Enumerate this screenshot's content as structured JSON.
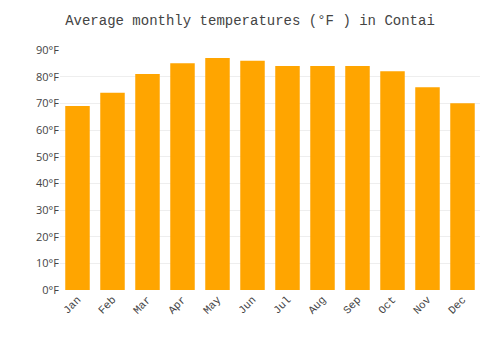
{
  "chart_data": {
    "type": "bar",
    "title": "Average monthly temperatures (°F ) in Contai",
    "categories": [
      "Jan",
      "Feb",
      "Mar",
      "Apr",
      "May",
      "Jun",
      "Jul",
      "Aug",
      "Sep",
      "Oct",
      "Nov",
      "Dec"
    ],
    "values": [
      69,
      74,
      81,
      85,
      87,
      86,
      84,
      84,
      84,
      82,
      76,
      70
    ],
    "color": "#FFA500",
    "ylim": [
      0,
      90
    ],
    "yticks": [
      {
        "value": 0,
        "label": "0°F"
      },
      {
        "value": 10,
        "label": "10°F"
      },
      {
        "value": 20,
        "label": "20°F"
      },
      {
        "value": 30,
        "label": "30°F"
      },
      {
        "value": 40,
        "label": "40°F"
      },
      {
        "value": 50,
        "label": "50°F"
      },
      {
        "value": 60,
        "label": "60°F"
      },
      {
        "value": 70,
        "label": "70°F"
      },
      {
        "value": 80,
        "label": "80°F"
      },
      {
        "value": 90,
        "label": "90°F"
      }
    ],
    "grid": true
  }
}
